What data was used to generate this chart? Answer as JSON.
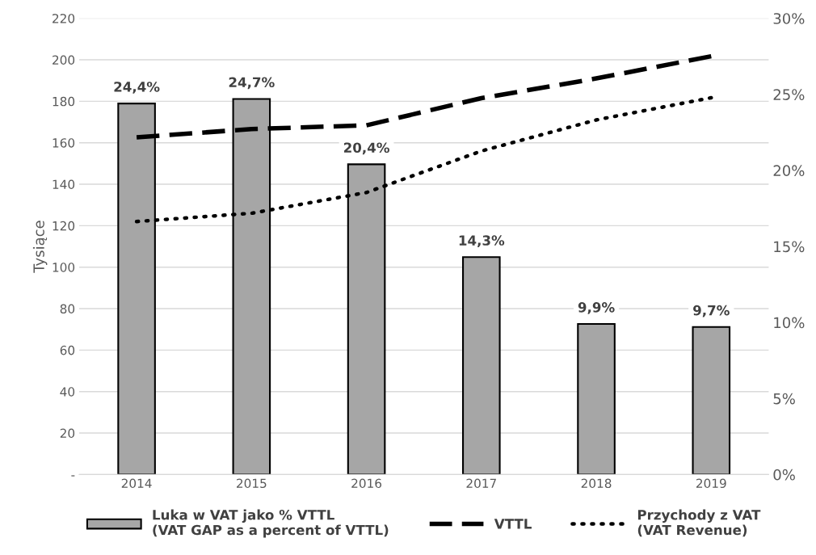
{
  "chart_data": {
    "type": "bar",
    "ylabel": "Tysiące",
    "categories": [
      "2014",
      "2015",
      "2016",
      "2017",
      "2018",
      "2019"
    ],
    "series": [
      {
        "name": "Luka w VAT jako % VTTL\n(VAT GAP as a percent of VTTL)",
        "axis": "y2",
        "color": "#a6a6a6",
        "values": [
          24.4,
          24.7,
          20.4,
          14.3,
          9.9,
          9.7
        ],
        "value_labels": [
          "24,4%",
          "24,7%",
          "20,4%",
          "14,3%",
          "9,9%",
          "9,7%"
        ]
      },
      {
        "name": "VTTL",
        "type": "line",
        "color": "#000000",
        "line_style": "dashed",
        "values": [
          162.6,
          166.6,
          168.4,
          181.5,
          191,
          201.7
        ]
      },
      {
        "name": "Przychody z VAT\n(VAT Revenue)",
        "type": "line",
        "color": "#000000",
        "line_style": "dotted",
        "values": [
          122,
          126,
          136,
          156,
          171,
          181.7
        ]
      }
    ],
    "ylim": [
      0,
      220
    ],
    "yticks": [
      {
        "value": 0,
        "label": "-"
      },
      20,
      40,
      60,
      80,
      100,
      120,
      140,
      160,
      180,
      200,
      220
    ],
    "y2lim": [
      0,
      30
    ],
    "y2ticks": [
      {
        "value": 0,
        "label": "0%"
      },
      {
        "value": 5,
        "label": "5%"
      },
      {
        "value": 10,
        "label": "10%"
      },
      {
        "value": 15,
        "label": "15%"
      },
      {
        "value": 20,
        "label": "20%"
      },
      {
        "value": 25,
        "label": "25%"
      },
      {
        "value": 30,
        "label": "30%"
      }
    ],
    "grid": "y",
    "legend": "bottom"
  }
}
